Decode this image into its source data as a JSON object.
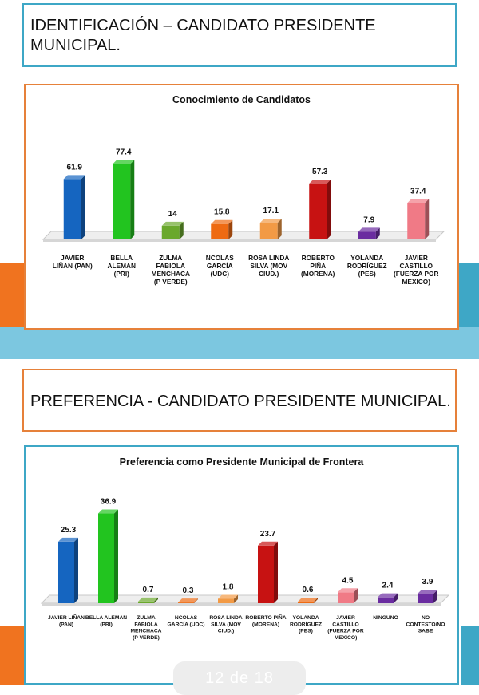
{
  "section1": {
    "title": "IDENTIFICACIÓN – CANDIDATO PRESIDENTE MUNICIPAL."
  },
  "section2": {
    "title": "PREFERENCIA - CANDIDATO PRESIDENTE MUNICIPAL."
  },
  "pager": {
    "text": "12 de 18"
  },
  "colors": {
    "accent_blue": "#3ea7c6",
    "accent_orange": "#f0731f",
    "frame_orange": "#e6813a"
  },
  "chart_data": [
    {
      "type": "bar",
      "title": "Conocimiento de Candidatos",
      "categories": [
        [
          "JAVIER",
          "LIÑAN (PAN)"
        ],
        [
          "BELLA",
          "ALEMAN",
          "(PRI)"
        ],
        [
          "ZULMA",
          "FABIOLA",
          "MENCHACA",
          "(P VERDE)"
        ],
        [
          "NCOLAS",
          "GARCÍA",
          "(UDC)"
        ],
        [
          "ROSA LINDA",
          "SILVA (MOV",
          "CIUD.)"
        ],
        [
          "ROBERTO",
          "PIÑA",
          "(MORENA)"
        ],
        [
          "YOLANDA",
          "RODRÍGUEZ",
          "(PES)"
        ],
        [
          "JAVIER",
          "CASTILLO",
          "(FUERZA POR",
          "MEXICO)"
        ]
      ],
      "values": [
        61.9,
        77.4,
        14,
        15.8,
        17.1,
        57.3,
        7.9,
        37.4
      ],
      "value_labels": [
        "61.9",
        "77.4",
        "14",
        "15.8",
        "17.1",
        "57.3",
        "7.9",
        "37.4"
      ],
      "colors": [
        "#1565c0",
        "#22c41f",
        "#6aa82c",
        "#ee6a12",
        "#f29a45",
        "#c71212",
        "#6a2ca0",
        "#f07a86"
      ],
      "ylim": [
        0,
        90
      ]
    },
    {
      "type": "bar",
      "title": "Preferencia como Presidente Municipal de Frontera",
      "categories": [
        [
          "JAVIER LIÑAN",
          "(PAN)"
        ],
        [
          "BELLA ALEMAN",
          "(PRI)"
        ],
        [
          "ZULMA",
          "FABIOLA",
          "MENCHACA",
          "(P VERDE)"
        ],
        [
          "NCOLAS",
          "GARCÍA (UDC)"
        ],
        [
          "ROSA LINDA",
          "SILVA (MOV",
          "CIUD.)"
        ],
        [
          "ROBERTO PIÑA",
          "(MORENA)"
        ],
        [
          "YOLANDA",
          "RODRÍGUEZ",
          "(PES)"
        ],
        [
          "JAVIER",
          "CASTILLO",
          "(FUERZA POR",
          "MEXICO)"
        ],
        [
          "NINGUNO"
        ],
        [
          "NO",
          "CONTESTO/NO",
          "SABE"
        ]
      ],
      "values": [
        25.3,
        36.9,
        0.7,
        0.3,
        1.8,
        23.7,
        0.6,
        4.5,
        2.4,
        3.9
      ],
      "value_labels": [
        "25.3",
        "36.9",
        "0.7",
        "0.3",
        "1.8",
        "23.7",
        "0.6",
        "4.5",
        "2.4",
        "3.9"
      ],
      "colors": [
        "#1565c0",
        "#22c41f",
        "#6aa82c",
        "#ee6a12",
        "#f29a45",
        "#c71212",
        "#ee6a12",
        "#f07a86",
        "#6a2ca0",
        "#6a2ca0"
      ],
      "ylim": [
        0,
        42
      ]
    }
  ]
}
